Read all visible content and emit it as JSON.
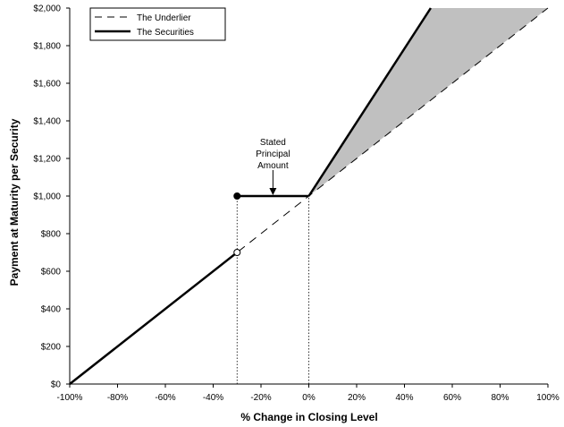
{
  "chart_data": {
    "type": "line",
    "title": "",
    "xlabel": "% Change in Closing Level",
    "ylabel": "Payment at Maturity per Security",
    "xlim": [
      -100,
      100
    ],
    "ylim": [
      0,
      2000
    ],
    "x_ticks": [
      -100,
      -80,
      -60,
      -40,
      -20,
      0,
      20,
      40,
      60,
      80,
      100
    ],
    "x_tick_labels": [
      "-100%",
      "-80%",
      "-60%",
      "-40%",
      "-20%",
      "0%",
      "20%",
      "40%",
      "60%",
      "80%",
      "100%"
    ],
    "y_ticks": [
      0,
      200,
      400,
      600,
      800,
      1000,
      1200,
      1400,
      1600,
      1800,
      2000
    ],
    "y_tick_labels": [
      "$0",
      "$200",
      "$400",
      "$600",
      "$800",
      "$1,000",
      "$1,200",
      "$1,400",
      "$1,600",
      "$1,800",
      "$2,000"
    ],
    "grid": false,
    "legend": {
      "position": "top-left",
      "entries": [
        "The Underlier",
        "The Securities"
      ]
    },
    "series": [
      {
        "name": "The Underlier",
        "style": "dashed",
        "color": "#000000",
        "x": [
          -100,
          100
        ],
        "y": [
          0,
          2000
        ]
      },
      {
        "name": "The Securities",
        "style": "solid",
        "color": "#000000",
        "segments": [
          {
            "x": [
              -100,
              -30
            ],
            "y": [
              0,
              700
            ]
          },
          {
            "x": [
              -30,
              0
            ],
            "y": [
              1000,
              1000
            ]
          },
          {
            "x": [
              0,
              51
            ],
            "y": [
              1000,
              2000
            ]
          }
        ]
      }
    ],
    "markers": [
      {
        "x": -30,
        "y": 1000,
        "fill": "filled"
      },
      {
        "x": -30,
        "y": 700,
        "fill": "open"
      }
    ],
    "reference_lines": [
      {
        "x": -30,
        "y_from": 0,
        "y_to": 1000,
        "style": "dotted"
      },
      {
        "x": 0,
        "y_from": 0,
        "y_to": 1000,
        "style": "dotted"
      }
    ],
    "shaded_region": {
      "color": "#c0c0c0",
      "polygon": [
        [
          0,
          1000
        ],
        [
          51,
          2000
        ],
        [
          100,
          2000
        ]
      ]
    },
    "annotation": {
      "lines": [
        "Stated",
        "Principal",
        "Amount"
      ],
      "arrow_to": {
        "x": -15,
        "y": 1000
      }
    }
  }
}
